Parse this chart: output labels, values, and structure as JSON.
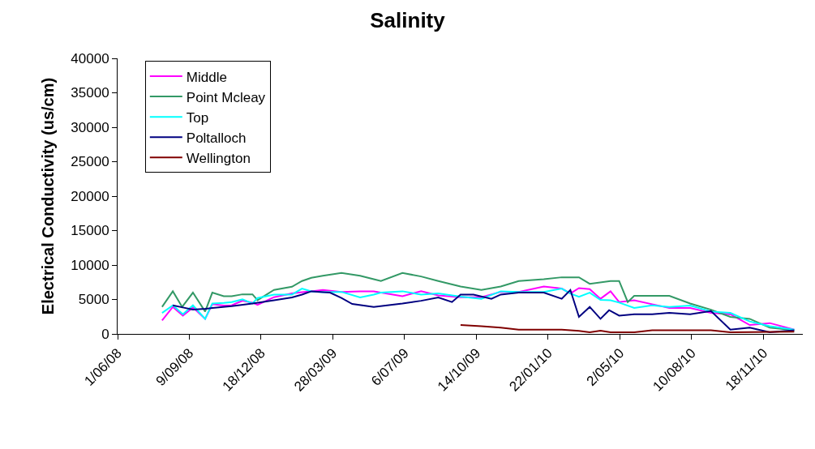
{
  "chart_data": {
    "type": "line",
    "title": "Salinity",
    "ylabel": "Electrical Conductivity (us/cm)",
    "xlim": [
      "2008-06-01",
      "2011-01-12"
    ],
    "xticks": [
      {
        "value": "2008-06-01",
        "label": "1/06/08"
      },
      {
        "value": "2008-09-09",
        "label": "9/09/08"
      },
      {
        "value": "2008-12-18",
        "label": "18/12/08"
      },
      {
        "value": "2009-03-28",
        "label": "28/03/09"
      },
      {
        "value": "2009-07-06",
        "label": "6/07/09"
      },
      {
        "value": "2009-10-14",
        "label": "14/10/09"
      },
      {
        "value": "2010-01-22",
        "label": "22/01/10"
      },
      {
        "value": "2010-05-02",
        "label": "2/05/10"
      },
      {
        "value": "2010-08-10",
        "label": "10/08/10"
      },
      {
        "value": "2010-11-18",
        "label": "18/11/10"
      }
    ],
    "ylim": [
      0,
      40000
    ],
    "yticks": [
      0,
      5000,
      10000,
      15000,
      20000,
      25000,
      30000,
      35000,
      40000
    ],
    "grid": false,
    "legend": "top left",
    "marker": "none",
    "line_style": "solid",
    "series": [
      {
        "name": "Middle",
        "color": "#ff00ff",
        "x": [
          "2008-08-02",
          "2008-08-17",
          "2008-08-31",
          "2008-09-14",
          "2008-10-01",
          "2008-10-11",
          "2008-10-27",
          "2008-11-07",
          "2008-11-22",
          "2008-12-06",
          "2008-12-13",
          "2009-01-05",
          "2009-01-30",
          "2009-02-13",
          "2009-02-26",
          "2009-03-14",
          "2009-04-09",
          "2009-05-05",
          "2009-05-24",
          "2009-07-03",
          "2009-07-29",
          "2009-08-22",
          "2009-09-22",
          "2009-10-21",
          "2009-11-17",
          "2009-12-12",
          "2010-01-16",
          "2010-02-10",
          "2010-02-22",
          "2010-03-06",
          "2010-03-21",
          "2010-04-05",
          "2010-04-19",
          "2010-05-01",
          "2010-05-22",
          "2010-06-16",
          "2010-07-10",
          "2010-08-08",
          "2010-09-06",
          "2010-10-03",
          "2010-10-30",
          "2010-11-27",
          "2010-12-31"
        ],
        "values": [
          1960,
          3920,
          2660,
          3840,
          2190,
          4310,
          4110,
          4150,
          4810,
          4540,
          4230,
          5330,
          5870,
          6070,
          6190,
          6380,
          6100,
          6190,
          6190,
          5480,
          6190,
          5600,
          5330,
          5330,
          6100,
          6100,
          6890,
          6580,
          5870,
          6650,
          6500,
          5100,
          6190,
          4620,
          4890,
          4310,
          3760,
          3760,
          3050,
          2860,
          1290,
          1570,
          630
        ]
      },
      {
        "name": "Point Mcleay",
        "color": "#339966",
        "x": [
          "2008-08-02",
          "2008-08-17",
          "2008-08-30",
          "2008-09-14",
          "2008-10-01",
          "2008-10-11",
          "2008-10-27",
          "2008-11-07",
          "2008-11-22",
          "2008-12-06",
          "2008-12-13",
          "2009-01-05",
          "2009-01-30",
          "2009-02-13",
          "2009-02-26",
          "2009-03-14",
          "2009-04-09",
          "2009-05-05",
          "2009-05-24",
          "2009-06-03",
          "2009-07-03",
          "2009-07-29",
          "2009-08-22",
          "2009-09-22",
          "2009-10-21",
          "2009-11-17",
          "2009-12-12",
          "2010-01-16",
          "2010-02-10",
          "2010-03-06",
          "2010-03-21",
          "2010-04-19",
          "2010-05-01",
          "2010-05-13",
          "2010-05-22",
          "2010-07-10",
          "2010-08-08",
          "2010-09-06",
          "2010-10-03",
          "2010-10-30",
          "2010-11-27",
          "2010-12-31"
        ],
        "values": [
          3920,
          6190,
          3920,
          5990,
          3250,
          5990,
          5480,
          5480,
          5750,
          5750,
          4900,
          6380,
          6850,
          7680,
          8150,
          8450,
          8850,
          8450,
          7950,
          7680,
          8850,
          8340,
          7680,
          6890,
          6380,
          6890,
          7680,
          7950,
          8220,
          8220,
          7280,
          7680,
          7680,
          4620,
          5520,
          5520,
          4420,
          3520,
          2470,
          2190,
          900,
          520
        ]
      },
      {
        "name": "Top",
        "color": "#00ffff",
        "x": [
          "2008-08-02",
          "2008-08-17",
          "2008-08-31",
          "2008-09-14",
          "2008-10-01",
          "2008-10-11",
          "2008-10-27",
          "2008-11-07",
          "2008-11-22",
          "2008-12-06",
          "2008-12-13",
          "2009-01-05",
          "2009-01-30",
          "2009-02-13",
          "2009-02-26",
          "2009-03-14",
          "2009-04-09",
          "2009-05-05",
          "2009-05-24",
          "2009-06-03",
          "2009-07-03",
          "2009-07-29",
          "2009-08-22",
          "2009-09-22",
          "2009-10-21",
          "2009-11-17",
          "2009-12-12",
          "2010-01-16",
          "2010-02-10",
          "2010-02-22",
          "2010-03-06",
          "2010-03-21",
          "2010-04-05",
          "2010-04-19",
          "2010-05-01",
          "2010-05-22",
          "2010-06-16",
          "2010-07-10",
          "2010-08-08",
          "2010-09-06",
          "2010-10-03",
          "2010-10-30",
          "2010-11-27",
          "2010-12-31"
        ],
        "values": [
          3050,
          4150,
          2860,
          4150,
          2190,
          4420,
          4500,
          4630,
          5010,
          4420,
          5210,
          5710,
          5710,
          6580,
          6190,
          6070,
          6100,
          5290,
          5710,
          5990,
          6190,
          5710,
          5870,
          5400,
          5100,
          6190,
          6100,
          6100,
          6580,
          5870,
          5400,
          5990,
          4930,
          4890,
          4540,
          3760,
          4150,
          3920,
          4110,
          3250,
          3050,
          1810,
          1110,
          630
        ]
      },
      {
        "name": "Poltalloch",
        "color": "#000080",
        "x": [
          "2008-08-17",
          "2008-08-31",
          "2008-09-14",
          "2008-10-01",
          "2008-10-11",
          "2008-11-07",
          "2008-12-06",
          "2009-01-05",
          "2009-01-30",
          "2009-02-13",
          "2009-02-26",
          "2009-03-24",
          "2009-04-09",
          "2009-04-24",
          "2009-05-24",
          "2009-07-03",
          "2009-07-29",
          "2009-08-22",
          "2009-09-10",
          "2009-09-22",
          "2009-10-10",
          "2009-11-04",
          "2009-11-17",
          "2009-12-12",
          "2010-01-16",
          "2010-02-10",
          "2010-02-22",
          "2010-03-06",
          "2010-03-21",
          "2010-04-05",
          "2010-04-17",
          "2010-05-01",
          "2010-05-22",
          "2010-06-16",
          "2010-07-10",
          "2010-08-08",
          "2010-09-06",
          "2010-10-03",
          "2010-10-30",
          "2010-11-27",
          "2010-12-31"
        ],
        "values": [
          4150,
          3840,
          3540,
          3640,
          3760,
          4040,
          4420,
          4890,
          5290,
          5710,
          6190,
          5990,
          5210,
          4350,
          3920,
          4420,
          4810,
          5290,
          4620,
          5710,
          5710,
          5100,
          5710,
          5990,
          5990,
          5100,
          6380,
          2470,
          3920,
          2190,
          3450,
          2660,
          2860,
          2860,
          3050,
          2860,
          3330,
          630,
          900,
          230,
          520
        ]
      },
      {
        "name": "Wellington",
        "color": "#800000",
        "x": [
          "2009-09-22",
          "2009-10-21",
          "2009-11-17",
          "2009-12-12",
          "2010-01-16",
          "2010-02-10",
          "2010-03-06",
          "2010-03-21",
          "2010-04-05",
          "2010-04-19",
          "2010-05-22",
          "2010-06-16",
          "2010-08-08",
          "2010-09-06",
          "2010-10-03",
          "2010-12-31"
        ],
        "values": [
          1290,
          1110,
          900,
          630,
          630,
          630,
          430,
          230,
          470,
          230,
          230,
          520,
          520,
          520,
          230,
          310
        ]
      }
    ]
  }
}
